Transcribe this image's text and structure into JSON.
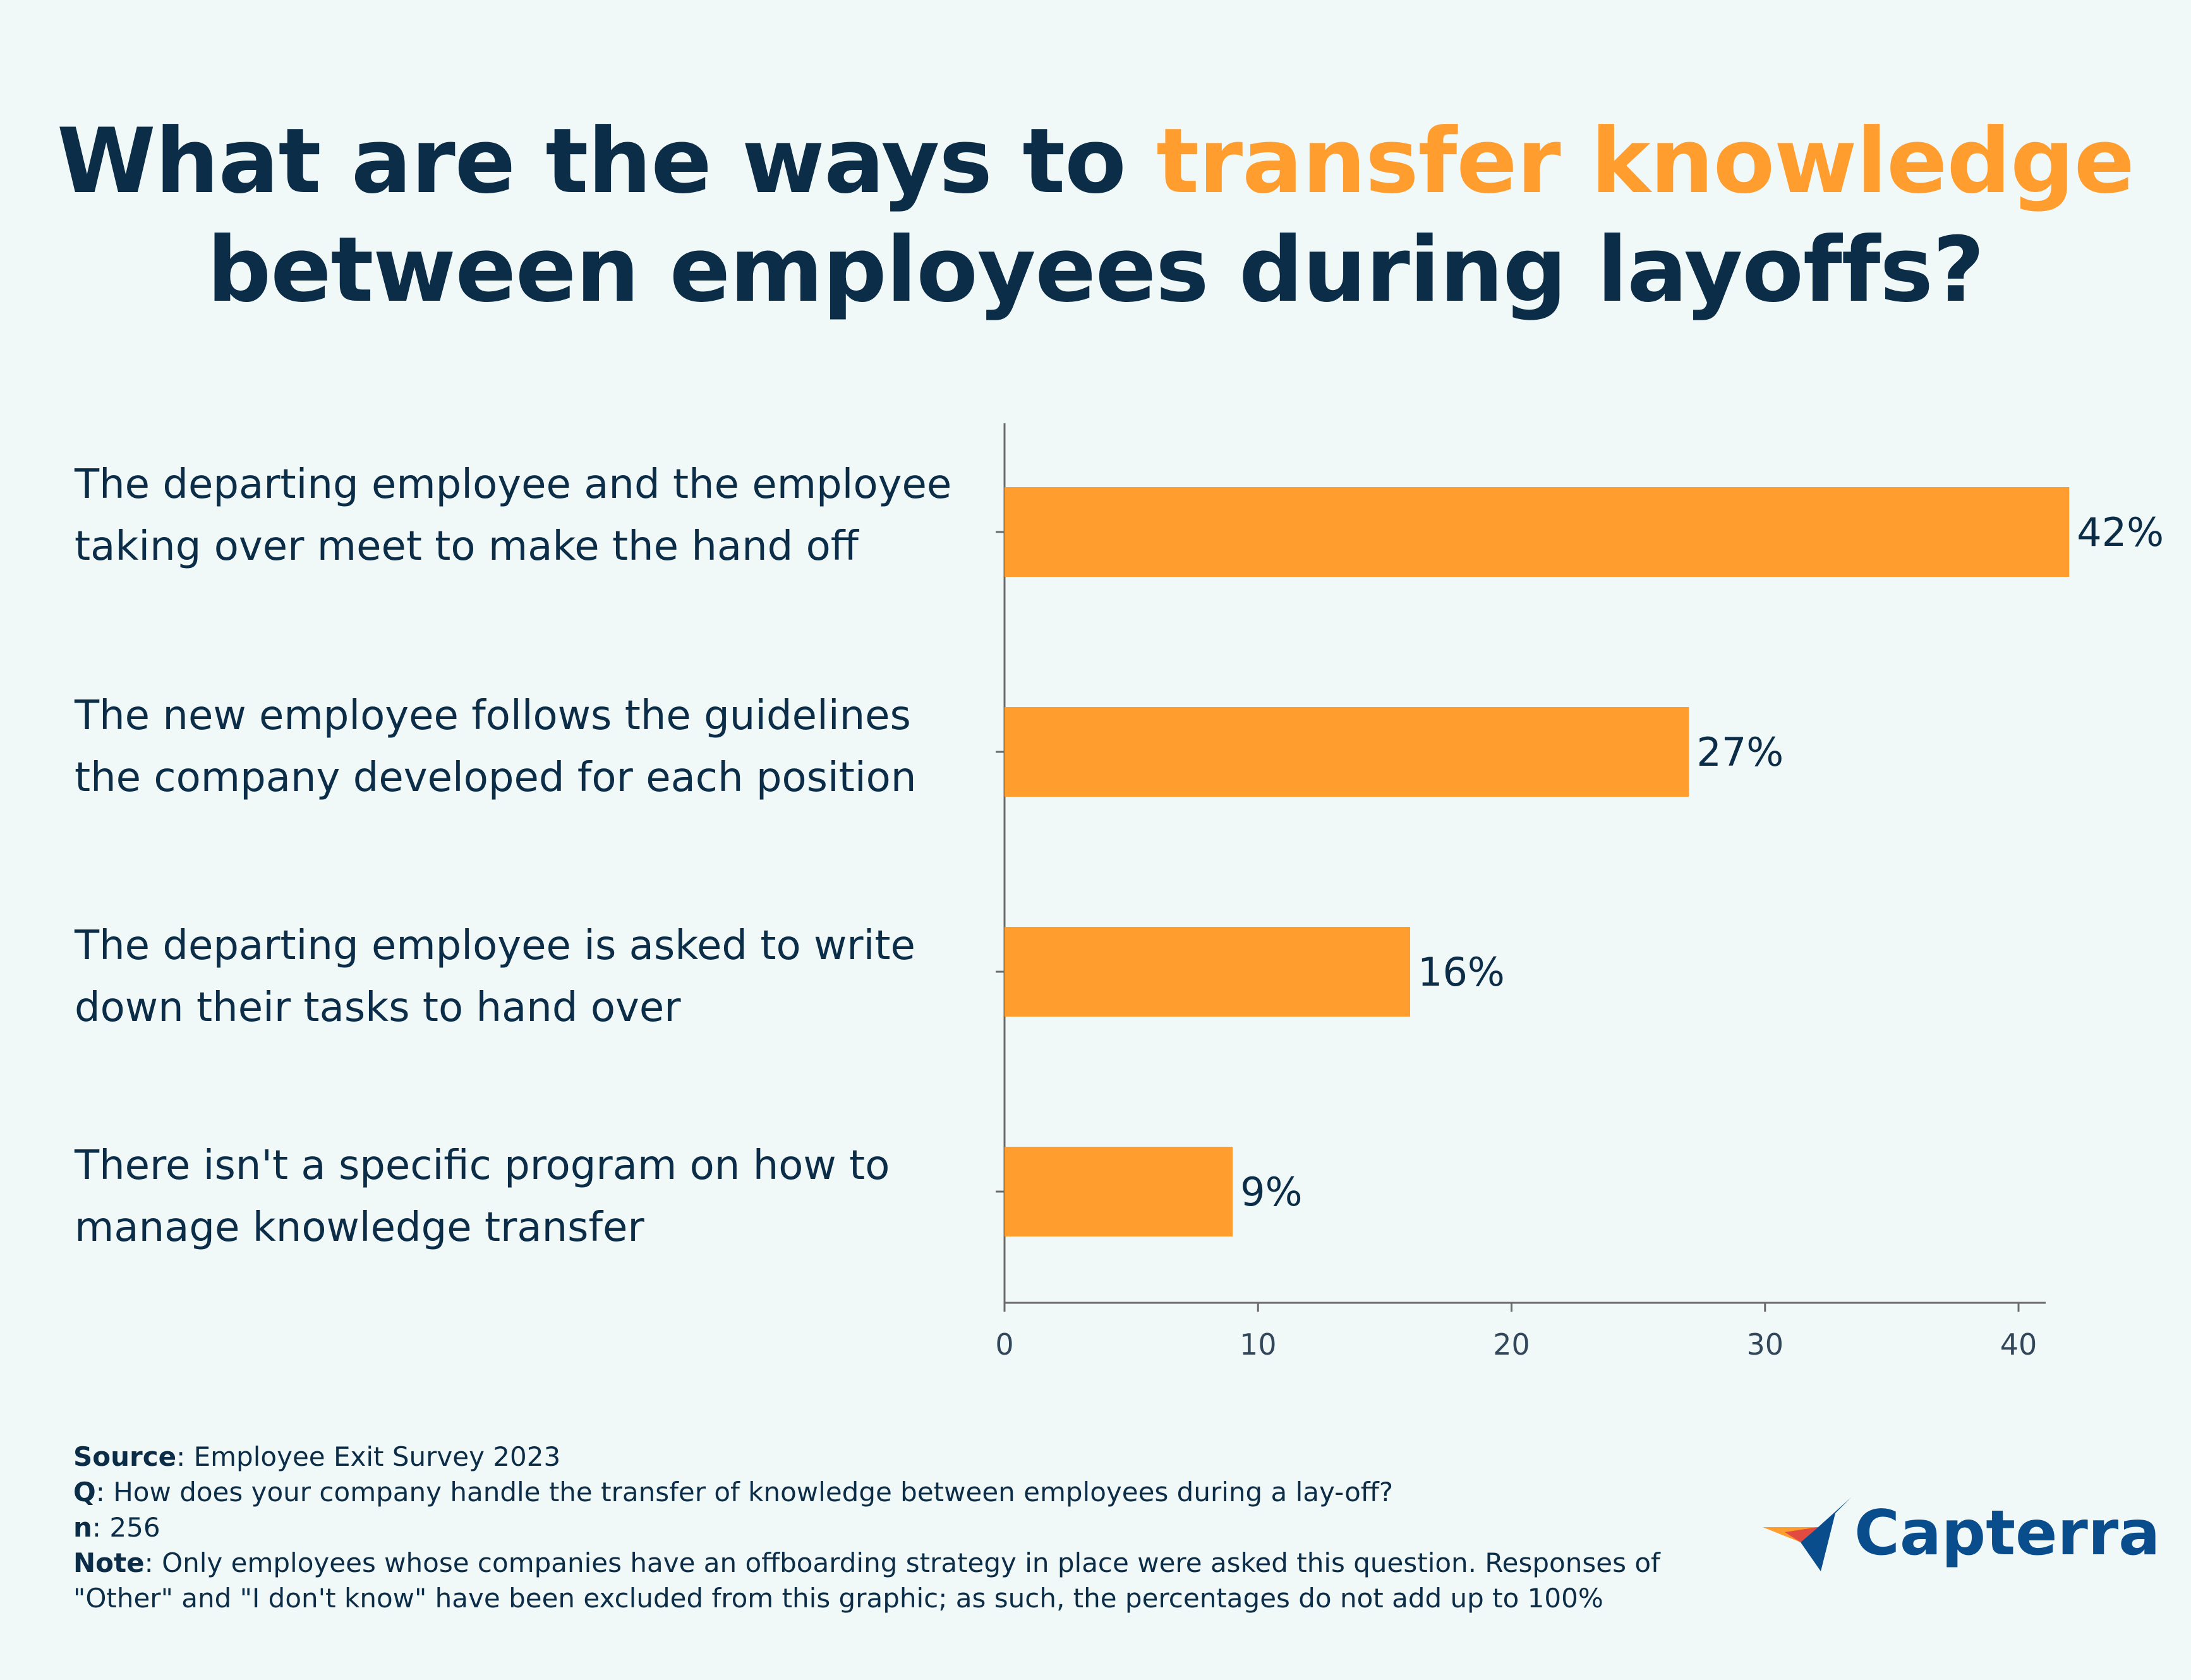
{
  "title": {
    "before": "What are the ways to ",
    "highlight": "transfer knowledge",
    "after": "between employees during layoffs?"
  },
  "colors": {
    "bar": "#ff9d2e",
    "text": "#0c2d48",
    "accent": "#ff9d2e",
    "background": "#f1f8f8",
    "logo": "#0a4d8c"
  },
  "chart_data": {
    "type": "bar",
    "orientation": "horizontal",
    "categories": [
      "The departing employee and the employee taking over meet to make the hand off",
      "The new employee follows the guidelines the company developed for each position",
      "The departing employee is asked to write down their tasks to hand over",
      "There isn't a specific program on how to manage knowledge transfer"
    ],
    "category_lines": [
      [
        "The departing employee and the employee",
        "taking over meet to make the hand off"
      ],
      [
        "The new employee follows the guidelines",
        "the company developed for each position"
      ],
      [
        "The departing employee is asked to write",
        "down their tasks to hand over"
      ],
      [
        "There isn't a specific program on how to",
        "manage knowledge transfer"
      ]
    ],
    "values": [
      42,
      27,
      16,
      9
    ],
    "data_labels": [
      "42%",
      "27%",
      "16%",
      "9%"
    ],
    "xlim": [
      0,
      45
    ],
    "x_ticks": [
      0,
      10,
      20,
      30,
      40
    ],
    "x_tick_labels": [
      "0",
      "10",
      "20",
      "30",
      "40"
    ],
    "grid": false
  },
  "footer": {
    "source_label": "Source",
    "source_text": ": Employee Exit Survey 2023",
    "q_label": "Q",
    "q_text": ": How does your company handle the transfer of knowledge between employees during a lay-off?",
    "n_label": "n",
    "n_text": ": 256",
    "note_label": "Note",
    "note_text": ": Only employees whose companies have an offboarding strategy in place were asked this question. Responses of \"Other\" and \"I don't know\" have been excluded from this graphic; as such, the percentages do not add up to 100%"
  },
  "logo": {
    "text": "Capterra",
    "icon": "capterra-arrow-icon"
  }
}
